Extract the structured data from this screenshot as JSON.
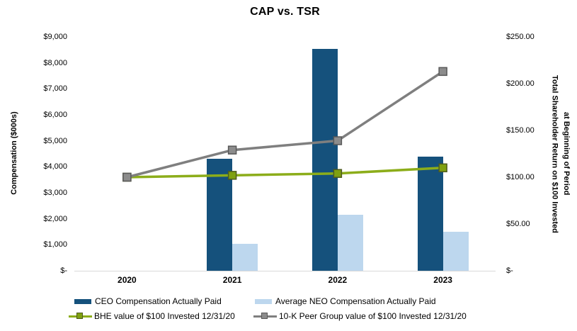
{
  "title": "CAP vs. TSR",
  "chart_data": {
    "type": "bar+line-combo",
    "categories": [
      "2020",
      "2021",
      "2022",
      "2023"
    ],
    "series": [
      {
        "name": "CEO Compensation Actually Paid",
        "type": "bar",
        "axis": "left",
        "color": "#15517C",
        "values": [
          0,
          4300,
          8550,
          4400
        ]
      },
      {
        "name": "Average NEO Compensation Actually Paid",
        "type": "bar",
        "axis": "left",
        "color": "#BDD7EE",
        "values": [
          0,
          1030,
          2150,
          1500
        ]
      },
      {
        "name": "BHE value of $100 Invested 12/31/20",
        "type": "line",
        "axis": "right",
        "color": "#8CAD1A",
        "marker_fill": "#7FA011",
        "marker_stroke": "#4E5B1E",
        "values": [
          100,
          102,
          104,
          110
        ]
      },
      {
        "name": "10-K Peer Group value of $100 Invested 12/31/20",
        "type": "line",
        "axis": "right",
        "color": "#7F7F7F",
        "marker_fill": "#8C8C8C",
        "marker_stroke": "#595959",
        "values": [
          100,
          129,
          139,
          213
        ]
      }
    ],
    "left_axis": {
      "title": "Compensation ($000s)",
      "min": 0,
      "max": 9000,
      "ticks": [
        {
          "label": "$9,000",
          "value": 9000
        },
        {
          "label": "$8,000",
          "value": 8000
        },
        {
          "label": "$7,000",
          "value": 7000
        },
        {
          "label": "$6,000",
          "value": 6000
        },
        {
          "label": "$5,000",
          "value": 5000
        },
        {
          "label": "$4,000",
          "value": 4000
        },
        {
          "label": "$3,000",
          "value": 3000
        },
        {
          "label": "$2,000",
          "value": 2000
        },
        {
          "label": "$1,000",
          "value": 1000
        },
        {
          "label": "$-",
          "value": 0
        }
      ]
    },
    "right_axis": {
      "title_line1": "Total Shareholder Return on $100 Invested",
      "title_line2": "at Beginning of Period",
      "min": 0,
      "max": 250,
      "ticks": [
        {
          "label": "$250.00",
          "value": 250
        },
        {
          "label": "$200.00",
          "value": 200
        },
        {
          "label": "$150.00",
          "value": 150
        },
        {
          "label": "$100.00",
          "value": 100
        },
        {
          "label": "$50.00",
          "value": 50
        },
        {
          "label": "$-",
          "value": 0
        }
      ]
    },
    "layout_hints": {
      "grid": "off",
      "legend_position": "bottom-two-columns",
      "axis_line_color": "#D9D9D9"
    }
  }
}
